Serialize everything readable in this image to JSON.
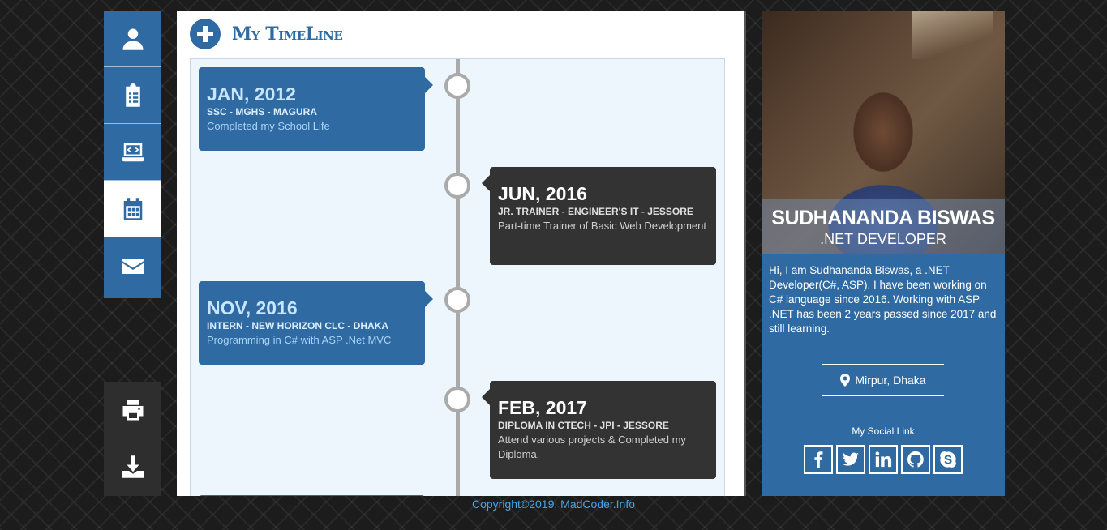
{
  "nav": {
    "top": [
      {
        "icon": "user-icon",
        "active": false
      },
      {
        "icon": "clipboard-icon",
        "active": false
      },
      {
        "icon": "laptop-code-icon",
        "active": false
      },
      {
        "icon": "calendar-icon",
        "active": true
      },
      {
        "icon": "envelope-icon",
        "active": false
      }
    ],
    "bottom": [
      {
        "icon": "print-icon"
      },
      {
        "icon": "download-icon"
      }
    ]
  },
  "main": {
    "title": "My TimeLine",
    "icon": "plus-circle-icon"
  },
  "timeline": [
    {
      "side": "left",
      "date": "JAN, 2012",
      "role": "SSC - MGHS - MAGURA",
      "desc": "Completed my School Life"
    },
    {
      "side": "right",
      "date": "JUN, 2016",
      "role": "JR. TRAINER - ENGINEER'S IT - JESSORE",
      "desc": "Part-time Trainer of Basic Web Development"
    },
    {
      "side": "left",
      "date": "NOV, 2016",
      "role": "INTERN - NEW HORIZON CLC - DHAKA",
      "desc": "Programming in C# with ASP .Net MVC"
    },
    {
      "side": "right",
      "date": "FEB, 2017",
      "role": "DIPLOMA IN CTECH - JPI - JESSORE",
      "desc": "Attend various projects & Completed my Diploma."
    }
  ],
  "profile": {
    "name": "SUDHANANDA BISWAS",
    "role": ".NET DEVELOPER",
    "bio": "Hi, I am Sudhananda Biswas, a .NET Developer(C#, ASP). I have been working on C# language since 2016. Working with ASP .NET has been 2 years passed since 2017 and still learning.",
    "location": "Mirpur, Dhaka",
    "social_title": "My Social Link",
    "social": [
      "facebook-icon",
      "twitter-icon",
      "linkedin-icon",
      "github-icon",
      "skype-icon"
    ]
  },
  "footer": "Copyright©2019, MadCoder.Info",
  "colors": {
    "primary": "#2f6aa3",
    "dark": "#333333",
    "footer": "#4aa3e0"
  }
}
